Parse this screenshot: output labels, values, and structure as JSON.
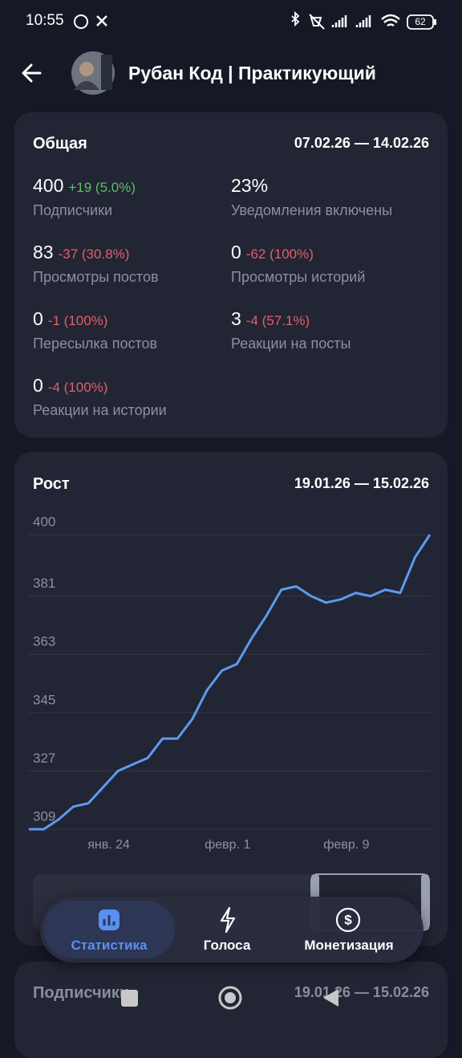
{
  "status_bar": {
    "time": "10:55",
    "battery": "62"
  },
  "header": {
    "title": "Рубан Код | Практикующий"
  },
  "overview": {
    "title": "Общая",
    "date_range": "07.02.26 — 14.02.26",
    "stats": [
      {
        "value": "400",
        "change": "+19 (5.0%)",
        "color": "#5dbf6a",
        "label": "Подписчики"
      },
      {
        "value": "23%",
        "label": "Уведомления включены"
      },
      {
        "value": "83",
        "change": "-37 (30.8%)",
        "color": "#e0606b",
        "label": "Просмотры постов"
      },
      {
        "value": "0",
        "change": "-62 (100%)",
        "color": "#e0606b",
        "label": "Просмотры историй"
      },
      {
        "value": "0",
        "change": "-1 (100%)",
        "color": "#e0606b",
        "label": "Пересылка постов"
      },
      {
        "value": "3",
        "change": "-4 (57.1%)",
        "color": "#e0606b",
        "label": "Реакции на посты"
      },
      {
        "value": "0",
        "change": "-4 (100%)",
        "color": "#e0606b",
        "label": "Реакции на истории"
      }
    ]
  },
  "chart_data": {
    "type": "line",
    "title": "Рост",
    "subtitle": "19.01.26 — 15.02.26",
    "categories": [
      null,
      null,
      null,
      null,
      null,
      "янв. 24",
      null,
      null,
      null,
      null,
      null,
      null,
      null,
      "февр. 1",
      null,
      null,
      null,
      null,
      null,
      null,
      null,
      "февр. 9",
      null,
      null,
      null,
      null,
      null,
      null
    ],
    "series": [
      {
        "name": "Подписчики",
        "color": "#5b9cf0",
        "values": [
          309,
          309,
          312,
          316,
          317,
          322,
          327,
          329,
          331,
          337,
          337,
          343,
          352,
          358,
          360,
          368,
          375,
          383,
          384,
          381,
          379,
          380,
          382,
          381,
          383,
          382,
          393,
          400
        ]
      }
    ],
    "ylim": [
      309,
      400
    ],
    "yticks": [
      309,
      327,
      345,
      363,
      381,
      400
    ],
    "grid": true
  },
  "next_card": {
    "title": "Подписчики",
    "date_range": "19.01.26 — 15.02.26"
  },
  "nav": {
    "items": [
      {
        "label": "Статистика"
      },
      {
        "label": "Голоса"
      },
      {
        "label": "Монетизация"
      }
    ]
  }
}
